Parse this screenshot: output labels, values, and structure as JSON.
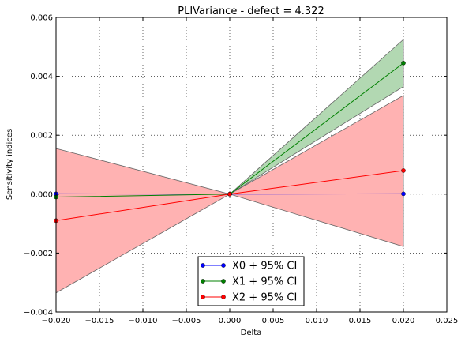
{
  "chart_data": {
    "type": "line",
    "title": "PLIVariance - defect = 4.322",
    "xlabel": "Delta",
    "ylabel": "Sensitivity indices",
    "xlim": [
      -0.02,
      0.025
    ],
    "ylim": [
      -0.004,
      0.006
    ],
    "xticks": [
      -0.02,
      -0.015,
      -0.01,
      -0.005,
      0.0,
      0.005,
      0.01,
      0.015,
      0.02,
      0.025
    ],
    "xtick_labels": [
      "−0.020",
      "−0.015",
      "−0.010",
      "−0.005",
      "0.000",
      "0.005",
      "0.010",
      "0.015",
      "0.020",
      "0.025"
    ],
    "yticks": [
      -0.004,
      -0.002,
      0.0,
      0.002,
      0.004,
      0.006
    ],
    "ytick_labels": [
      "−0.004",
      "−0.002",
      "0.000",
      "0.002",
      "0.004",
      "0.006"
    ],
    "grid": true,
    "legend_position": "bottom-center",
    "x": [
      -0.02,
      0.0,
      0.02
    ],
    "series": [
      {
        "name": "X0 + 95% CI",
        "color": "#0000ff",
        "values": [
          1e-05,
          0.0,
          1e-05
        ],
        "ci_lower": [
          -1e-05,
          0.0,
          -1e-05
        ],
        "ci_upper": [
          3e-05,
          0.0,
          3e-05
        ]
      },
      {
        "name": "X1 + 95% CI",
        "color": "#008000",
        "fill": "#b2d8b2",
        "values": [
          -0.0001,
          0.0,
          0.00445
        ],
        "ci_lower": [
          -0.00015,
          0.0,
          0.00365
        ],
        "ci_upper": [
          -5e-05,
          0.0,
          0.00525
        ]
      },
      {
        "name": "X2 + 95% CI",
        "color": "#ff0000",
        "fill": "#ffb2b2",
        "values": [
          -0.0009,
          0.0,
          0.0008
        ],
        "ci_lower": [
          -0.00335,
          0.0,
          -0.00178
        ],
        "ci_upper": [
          0.00155,
          0.0,
          0.00335
        ]
      }
    ]
  }
}
